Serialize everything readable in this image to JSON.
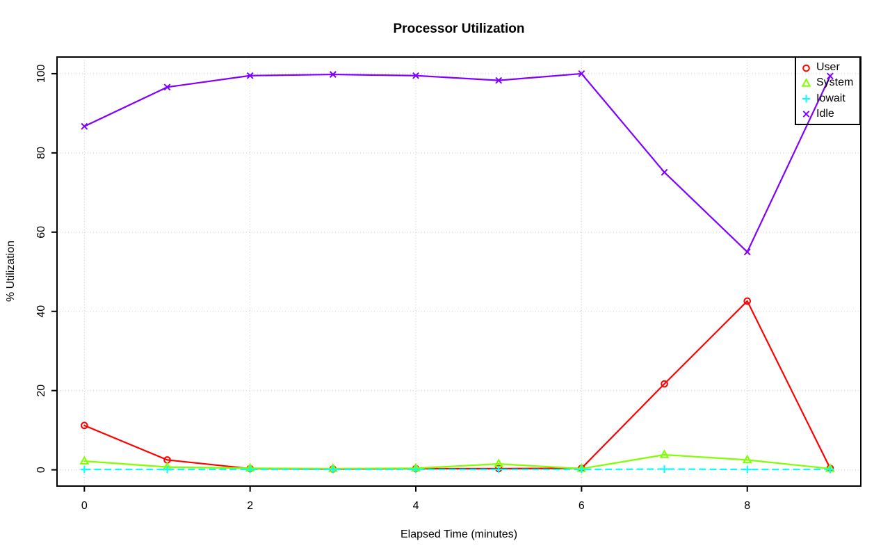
{
  "chart_data": {
    "type": "line",
    "title": "Processor Utilization",
    "xlabel": "Elapsed Time (minutes)",
    "ylabel": "% Utilization",
    "x": [
      0,
      1,
      2,
      3,
      4,
      5,
      6,
      7,
      8,
      9
    ],
    "x_ticks": [
      0,
      2,
      4,
      6,
      8
    ],
    "y_ticks": [
      0,
      20,
      40,
      60,
      80,
      100
    ],
    "xlim": [
      -0.33,
      9.37
    ],
    "ylim": [
      -4.1,
      104.2
    ],
    "grid": "dotted",
    "legend_position": "top-right",
    "series": [
      {
        "name": "User",
        "color": "#FF0000",
        "marker": "circle",
        "line_style": "solid",
        "values": [
          11.2,
          2.5,
          0.3,
          0.2,
          0.3,
          0.3,
          0.4,
          21.7,
          42.6,
          0.4
        ]
      },
      {
        "name": "System",
        "color": "#80FF00",
        "marker": "triangle-up",
        "line_style": "solid",
        "values": [
          2.2,
          0.7,
          0.4,
          0.3,
          0.4,
          1.5,
          0.3,
          3.8,
          2.5,
          0.3
        ]
      },
      {
        "name": "Iowait",
        "color": "#00FFFF",
        "marker": "plus",
        "line_style": "dashed",
        "values": [
          0.1,
          0.1,
          0.1,
          0.1,
          0.1,
          0.1,
          0.1,
          0.2,
          0.1,
          0.1
        ]
      },
      {
        "name": "Idle",
        "color": "#8000FF",
        "marker": "x",
        "line_style": "solid",
        "values": [
          86.7,
          96.6,
          99.5,
          99.8,
          99.5,
          98.3,
          100,
          75.1,
          55,
          99.4
        ]
      }
    ],
    "colors": {
      "background": "#FFFFFF",
      "axis": "#000000",
      "grid": "#C9C9C9",
      "text": "#000000"
    }
  }
}
